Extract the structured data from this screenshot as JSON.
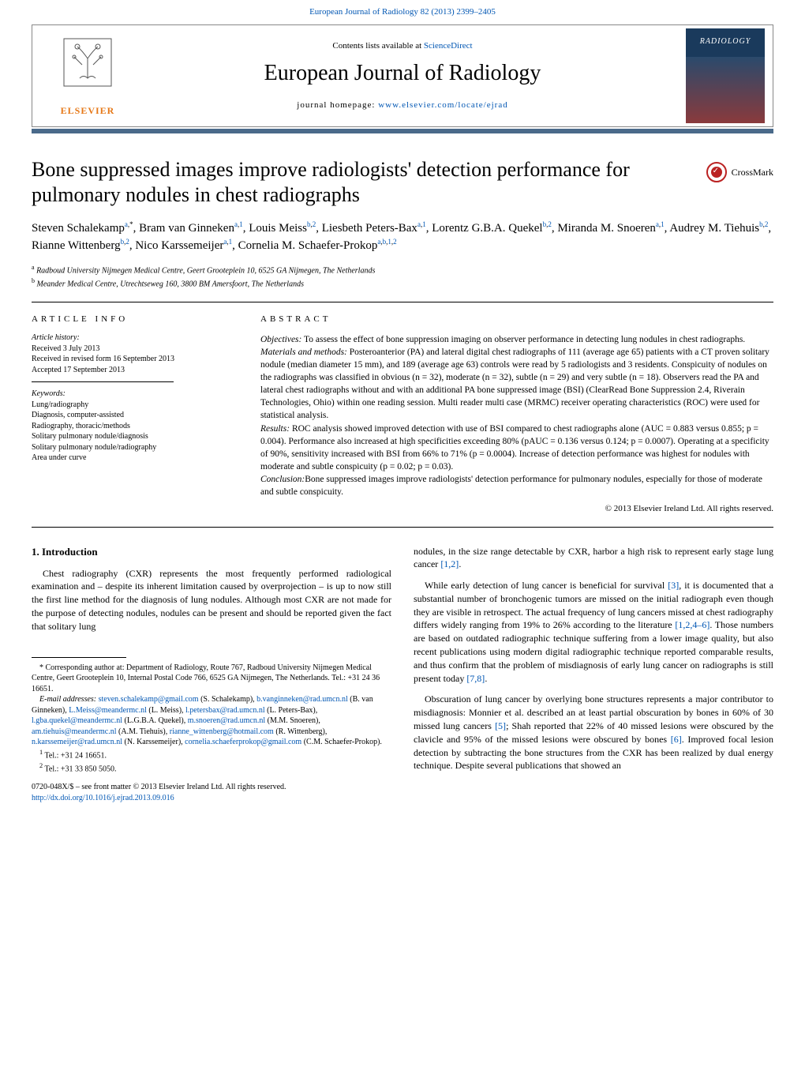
{
  "journal_link_text": "European Journal of Radiology 82 (2013) 2399–2405",
  "header": {
    "contents_prefix": "Contents lists available at ",
    "contents_link": "ScienceDirect",
    "journal_title": "European Journal of Radiology",
    "homepage_prefix": "journal homepage: ",
    "homepage_url": "www.elsevier.com/locate/ejrad",
    "publisher": "ELSEVIER",
    "cover_text": "RADIOLOGY"
  },
  "crossmark_label": "CrossMark",
  "title": "Bone suppressed images improve radiologists' detection performance for pulmonary nodules in chest radiographs",
  "authors_html": "Steven Schalekamp<sup><a>a</a>,*</sup>, Bram van Ginneken<sup><a>a</a>,<a>1</a></sup>, Louis Meiss<sup><a>b</a>,<a>2</a></sup>, Liesbeth Peters-Bax<sup><a>a</a>,<a>1</a></sup>, Lorentz G.B.A. Quekel<sup><a>b</a>,<a>2</a></sup>, Miranda M. Snoeren<sup><a>a</a>,<a>1</a></sup>, Audrey M. Tiehuis<sup><a>b</a>,<a>2</a></sup>, Rianne Wittenberg<sup><a>b</a>,<a>2</a></sup>, Nico Karssemeijer<sup><a>a</a>,<a>1</a></sup>, Cornelia M. Schaefer-Prokop<sup><a>a</a>,<a>b</a>,<a>1</a>,<a>2</a></sup>",
  "affiliations": {
    "a": "Radboud University Nijmegen Medical Centre, Geert Grooteplein 10, 6525 GA Nijmegen, The Netherlands",
    "b": "Meander Medical Centre, Utrechtseweg 160, 3800 BM Amersfoort, The Netherlands"
  },
  "info": {
    "heading": "article info",
    "history_label": "Article history:",
    "received": "Received 3 July 2013",
    "revised": "Received in revised form 16 September 2013",
    "accepted": "Accepted 17 September 2013",
    "keywords_label": "Keywords:",
    "keywords": [
      "Lung/radiography",
      "Diagnosis, computer-assisted",
      "Radiography, thoracic/methods",
      "Solitary pulmonary nodule/diagnosis",
      "Solitary pulmonary nodule/radiography",
      "Area under curve"
    ]
  },
  "abstract": {
    "heading": "abstract",
    "objectives_label": "Objectives:",
    "objectives": " To assess the effect of bone suppression imaging on observer performance in detecting lung nodules in chest radiographs.",
    "methods_label": "Materials and methods:",
    "methods": " Posteroanterior (PA) and lateral digital chest radiographs of 111 (average age 65) patients with a CT proven solitary nodule (median diameter 15 mm), and 189 (average age 63) controls were read by 5 radiologists and 3 residents. Conspicuity of nodules on the radiographs was classified in obvious (n = 32), moderate (n = 32), subtle (n = 29) and very subtle (n = 18). Observers read the PA and lateral chest radiographs without and with an additional PA bone suppressed image (BSI) (ClearRead Bone Suppression 2.4, Riverain Technologies, Ohio) within one reading session. Multi reader multi case (MRMC) receiver operating characteristics (ROC) were used for statistical analysis.",
    "results_label": "Results:",
    "results": " ROC analysis showed improved detection with use of BSI compared to chest radiographs alone (AUC = 0.883 versus 0.855; p = 0.004). Performance also increased at high specificities exceeding 80% (pAUC = 0.136 versus 0.124; p = 0.0007). Operating at a specificity of 90%, sensitivity increased with BSI from 66% to 71% (p = 0.0004). Increase of detection performance was highest for nodules with moderate and subtle conspicuity (p = 0.02; p = 0.03).",
    "conclusion_label": "Conclusion:",
    "conclusion": "Bone suppressed images improve radiologists' detection performance for pulmonary nodules, especially for those of moderate and subtle conspicuity.",
    "copyright": "© 2013 Elsevier Ireland Ltd. All rights reserved."
  },
  "body": {
    "section_heading": "1.  Introduction",
    "p1": "Chest radiography (CXR) represents the most frequently performed radiological examination and – despite its inherent limitation caused by overprojection – is up to now still the first line method for the diagnosis of lung nodules. Although most CXR are not made for the purpose of detecting nodules, nodules can be present and should be reported given the fact that solitary lung",
    "p2_a": "nodules, in the size range detectable by CXR, harbor a high risk to represent early stage lung cancer ",
    "p2_ref": "[1,2]",
    "p2_b": ".",
    "p3_a": "While early detection of lung cancer is beneficial for survival ",
    "p3_ref1": "[3]",
    "p3_b": ", it is documented that a substantial number of bronchogenic tumors are missed on the initial radiograph even though they are visible in retrospect. The actual frequency of lung cancers missed at chest radiography differs widely ranging from 19% to 26% according to the literature ",
    "p3_ref2": "[1,2,4–6]",
    "p3_c": ". Those numbers are based on outdated radiographic technique suffering from a lower image quality, but also recent publications using modern digital radiographic technique reported comparable results, and thus confirm that the problem of misdiagnosis of early lung cancer on radiographs is still present today ",
    "p3_ref3": "[7,8]",
    "p3_d": ".",
    "p4_a": "Obscuration of lung cancer by overlying bone structures represents a major contributor to misdiagnosis: Monnier et al. described an at least partial obscuration by bones in 60% of 30 missed lung cancers ",
    "p4_ref1": "[5]",
    "p4_b": "; Shah reported that 22% of 40 missed lesions were obscured by the clavicle and 95% of the missed lesions were obscured by bones ",
    "p4_ref2": "[6]",
    "p4_c": ". Improved focal lesion detection by subtracting the bone structures from the CXR has been realized by dual energy technique. Despite several publications that showed an"
  },
  "footnotes": {
    "corr": "* Corresponding author at: Department of Radiology, Route 767, Radboud University Nijmegen Medical Centre, Geert Grooteplein 10, Internal Postal Code 766, 6525 GA Nijmegen, The Netherlands. Tel.: +31 24 36 16651.",
    "emails_label": "E-mail addresses: ",
    "emails": [
      {
        "addr": "steven.schalekamp@gmail.com",
        "name": " (S. Schalekamp), "
      },
      {
        "addr": "b.vanginneken@rad.umcn.nl",
        "name": " (B. van Ginneken), "
      },
      {
        "addr": "L.Meiss@meandermc.nl",
        "name": " (L. Meiss), "
      },
      {
        "addr": "l.petersbax@rad.umcn.nl",
        "name": " (L. Peters-Bax), "
      },
      {
        "addr": "l.gba.quekel@meandermc.nl",
        "name": " (L.G.B.A. Quekel), "
      },
      {
        "addr": "m.snoeren@rad.umcn.nl",
        "name": " (M.M. Snoeren), "
      },
      {
        "addr": "am.tiehuis@meandermc.nl",
        "name": " (A.M. Tiehuis), "
      },
      {
        "addr": "rianne_wittenberg@hotmail.com",
        "name": " (R. Wittenberg), "
      },
      {
        "addr": "n.karssemeijer@rad.umcn.nl",
        "name": " (N. Karssemeijer), "
      },
      {
        "addr": "cornelia.schaeferprokop@gmail.com",
        "name": " (C.M. Schaefer-Prokop)."
      }
    ],
    "tel1": "Tel.: +31 24 16651.",
    "tel2": "Tel.: +31 33 850 5050.",
    "copyright_a": "0720-048X/$ – see front matter © 2013 Elsevier Ireland Ltd. All rights reserved.",
    "doi": "http://dx.doi.org/10.1016/j.ejrad.2013.09.016"
  },
  "colors": {
    "link": "#0056b3",
    "accent_bar": "#4a6a8a",
    "elsevier_orange": "#e67817",
    "crossmark_red": "#b22222"
  }
}
